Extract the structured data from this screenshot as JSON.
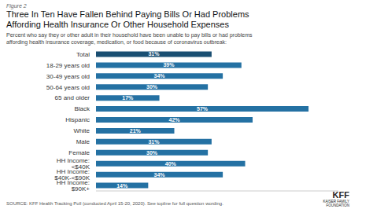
{
  "chart_data": {
    "type": "bar",
    "orientation": "horizontal",
    "title": "Three In Ten Have Fallen Behind Paying Bills Or Had Problems\nAffording Health Insurance Or Other Household Expenses",
    "subtitle": "Percent who say they or other adult in their household have been unable to pay bills or had problems\naffording health insurance coverage, medication, or food because of coronavirus outbreak:",
    "annotations": [
      "Figure 2",
      "SOURCE: KFF Health Tracking Poll (conducted April 15-20, 2020). See topline for full question wording.",
      "KFF",
      "KAISER FAMILY\nFOUNDATION"
    ],
    "categories": [
      "Total",
      "18-29 years old",
      "30-49 years old",
      "50-64 years old",
      "65 and older",
      "Black",
      "Hispanic",
      "White",
      "Male",
      "Female",
      "HH Income: <$40K",
      "HH Income: $40K-<$90K",
      "HH Income: $90K+"
    ],
    "values": [
      31,
      39,
      34,
      30,
      17,
      57,
      42,
      21,
      31,
      30,
      40,
      34,
      14
    ],
    "value_labels": [
      "31%",
      "39%",
      "34%",
      "30%",
      "17%",
      "57%",
      "42%",
      "21%",
      "31%",
      "30%",
      "40%",
      "34%",
      "14%"
    ],
    "data_labels": true,
    "colors": [
      "#1a4f72",
      "#2471a3",
      "#2471a3",
      "#2471a3",
      "#2471a3",
      "#2471a3",
      "#2471a3",
      "#2471a3",
      "#2471a3",
      "#2471a3",
      "#2471a3",
      "#2471a3",
      "#2471a3"
    ],
    "xlim": [
      0,
      65
    ],
    "tick_labels": "y",
    "grid": false
  }
}
